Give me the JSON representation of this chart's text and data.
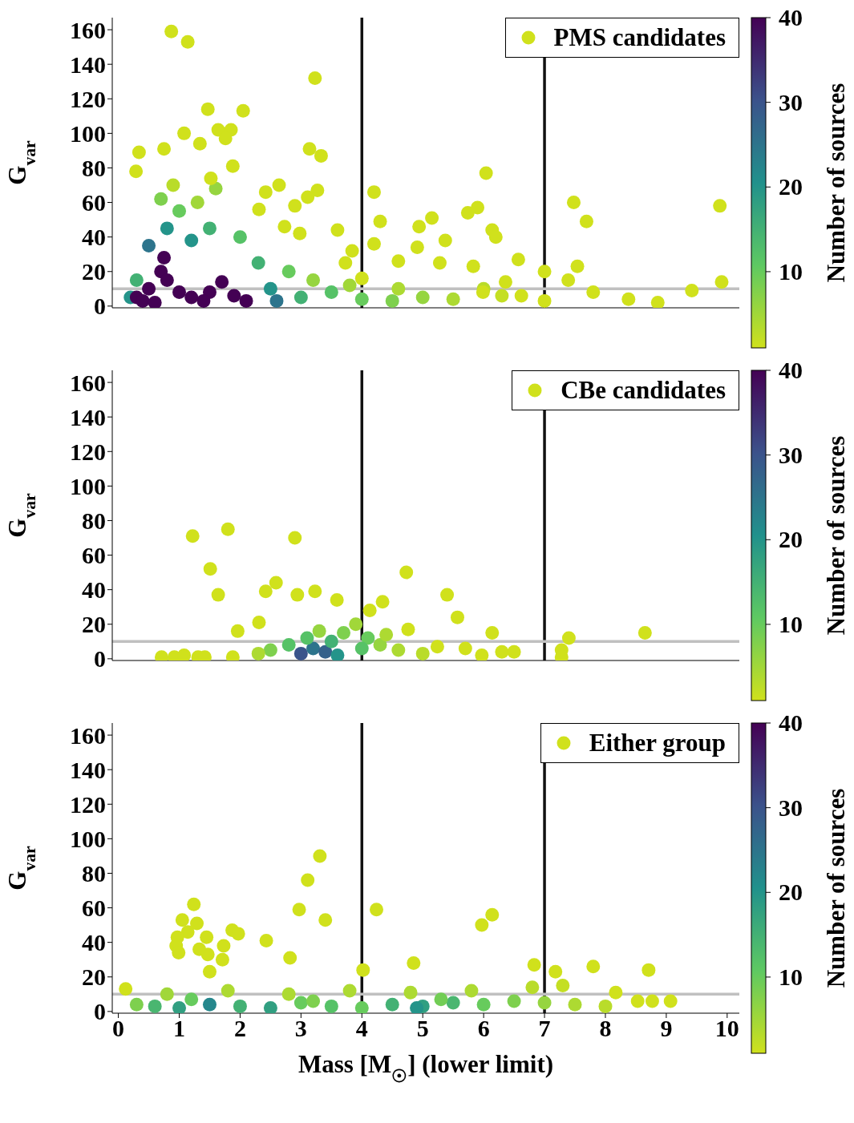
{
  "chart_data": [
    {
      "type": "scatter",
      "ylabel": "G$_{var}$",
      "clabel": "Number of sources",
      "clim": [
        1,
        40
      ],
      "cticks": [
        10,
        20,
        30,
        40
      ],
      "xlim": [
        -0.1,
        10.2
      ],
      "ylim": [
        -1,
        167
      ],
      "xticks": [
        0,
        1,
        2,
        3,
        4,
        5,
        6,
        7,
        8,
        9,
        10
      ],
      "yticks": [
        0,
        20,
        40,
        60,
        80,
        100,
        120,
        140,
        160
      ],
      "tick_labels": "y",
      "legend": "top right",
      "marker": "circle",
      "ref_lines": [
        {
          "axis": "x",
          "value": 4,
          "color": "#111111"
        },
        {
          "axis": "x",
          "value": 7,
          "color": "#111111"
        },
        {
          "axis": "y",
          "value": 10,
          "color": "#c0c0c0"
        }
      ],
      "series": [
        {
          "name": "PMS candidates",
          "x": [
            0.5,
            0.8,
            1.2,
            1.5,
            1.0,
            0.7,
            1.6,
            2.0,
            2.3,
            2.5,
            2.8,
            3.0,
            3.5,
            4.0,
            4.5,
            5.0,
            0.3,
            0.2,
            2.6,
            3.2,
            1.3,
            0.9,
            5.5,
            6.0,
            6.3,
            3.8,
            4.6,
            0.3,
            0.5,
            0.7,
            0.75,
            0.8,
            1.0,
            1.2,
            1.5,
            1.7,
            1.9,
            2.1,
            0.4,
            0.6,
            1.4,
            0.87,
            1.14,
            3.23,
            1.47,
            2.05,
            1.64,
            1.85,
            1.76,
            1.08,
            1.34,
            3.14,
            3.33,
            0.75,
            0.34,
            0.29,
            1.88,
            1.52,
            4.2,
            6.04,
            7.48,
            9.88,
            7.69,
            5.15,
            4.94,
            4.3,
            5.37,
            5.74,
            5.9,
            6.14,
            6.2,
            2.64,
            2.42,
            3.27,
            3.11,
            2.9,
            2.31,
            2.73,
            2.98,
            3.6,
            3.84,
            4.2,
            4.91,
            5.83,
            6.57,
            7.54,
            7.39,
            7.0,
            9.91,
            9.42,
            8.86,
            8.38,
            7.8,
            6.36,
            5.28,
            4.6,
            3.73,
            4.0,
            5.99,
            6.62,
            7.0
          ],
          "values": [
            35,
            45,
            38,
            45,
            55,
            62,
            68,
            40,
            25,
            10,
            20,
            5,
            8,
            4,
            3,
            5,
            15,
            5,
            3,
            15,
            60,
            70,
            4,
            10,
            6,
            12,
            10,
            5,
            10,
            20,
            28,
            15,
            8,
            5,
            8,
            14,
            6,
            3,
            3,
            2,
            3,
            159,
            153,
            132,
            114,
            113,
            102,
            102,
            97,
            100,
            94,
            91,
            87,
            91,
            89,
            78,
            81,
            74,
            66,
            77,
            60,
            58,
            49,
            51,
            46,
            49,
            38,
            54,
            57,
            44,
            40,
            70,
            66,
            67,
            63,
            58,
            56,
            46,
            42,
            44,
            32,
            36,
            34,
            23,
            27,
            23,
            15,
            20,
            14,
            9,
            2,
            4,
            8,
            14,
            25,
            26,
            25,
            16,
            8,
            6,
            3
          ],
          "cvalues": [
            25,
            20,
            20,
            15,
            10,
            8,
            6,
            12,
            15,
            20,
            10,
            15,
            12,
            10,
            8,
            6,
            15,
            20,
            25,
            6,
            5,
            3,
            4,
            3,
            2,
            5,
            4,
            40,
            40,
            40,
            40,
            40,
            40,
            40,
            40,
            40,
            40,
            40,
            40,
            40,
            40,
            1,
            1,
            1,
            1,
            1,
            1,
            1,
            1,
            1,
            1,
            1,
            1,
            1,
            1,
            1,
            1,
            1,
            1,
            1,
            1,
            1,
            1,
            1,
            1,
            1,
            1,
            1,
            1,
            1,
            1,
            1,
            1,
            1,
            1,
            1,
            1,
            1,
            1,
            1,
            1,
            1,
            1,
            1,
            1,
            1,
            1,
            1,
            1,
            1,
            1,
            1,
            1,
            1,
            1,
            1,
            1,
            1,
            1,
            1,
            1
          ]
        }
      ]
    },
    {
      "type": "scatter",
      "ylabel": "G$_{var}$",
      "clabel": "Number of sources",
      "clim": [
        1,
        40
      ],
      "cticks": [
        10,
        20,
        30,
        40
      ],
      "xlim": [
        -0.1,
        10.2
      ],
      "ylim": [
        -1,
        167
      ],
      "xticks": [
        0,
        1,
        2,
        3,
        4,
        5,
        6,
        7,
        8,
        9,
        10
      ],
      "yticks": [
        0,
        20,
        40,
        60,
        80,
        100,
        120,
        140,
        160
      ],
      "tick_labels": "y",
      "legend": "top right",
      "marker": "circle",
      "ref_lines": [
        {
          "axis": "x",
          "value": 4,
          "color": "#111111"
        },
        {
          "axis": "x",
          "value": 7,
          "color": "#111111"
        },
        {
          "axis": "y",
          "value": 10,
          "color": "#c0c0c0"
        }
      ],
      "series": [
        {
          "name": "CBe candidates",
          "x": [
            2.5,
            2.8,
            3.0,
            3.2,
            3.4,
            3.5,
            3.7,
            3.9,
            4.1,
            4.3,
            4.6,
            2.3,
            3.1,
            3.6,
            4.0,
            3.3,
            4.4,
            5.0,
            1.22,
            1.8,
            2.9,
            1.51,
            1.64,
            2.42,
            2.59,
            3.23,
            2.94,
            1.96,
            2.31,
            3.59,
            4.73,
            5.4,
            5.57,
            6.14,
            7.4,
            8.65,
            7.28,
            4.34,
            4.13,
            4.76,
            0.71,
            0.92,
            1.08,
            1.31,
            1.42,
            1.88,
            5.24,
            5.7,
            6.3,
            5.97,
            6.5,
            7.28
          ],
          "values": [
            5,
            8,
            3,
            6,
            4,
            10,
            15,
            20,
            12,
            8,
            5,
            3,
            12,
            2,
            6,
            16,
            14,
            3,
            71,
            75,
            70,
            52,
            37,
            39,
            44,
            39,
            37,
            16,
            21,
            34,
            50,
            37,
            24,
            15,
            12,
            15,
            5,
            33,
            28,
            17,
            1,
            1,
            2,
            1,
            1,
            1,
            7,
            6,
            4,
            2,
            4,
            1
          ],
          "cvalues": [
            8,
            12,
            30,
            25,
            28,
            15,
            8,
            5,
            10,
            6,
            4,
            4,
            12,
            20,
            12,
            6,
            4,
            3,
            1,
            1,
            1,
            1,
            1,
            1,
            1,
            1,
            1,
            1,
            1,
            1,
            1,
            1,
            1,
            1,
            1,
            1,
            1,
            1,
            1,
            1,
            1,
            1,
            1,
            1,
            1,
            1,
            1,
            1,
            1,
            1,
            1,
            1
          ]
        }
      ]
    },
    {
      "type": "scatter",
      "ylabel": "G$_{var}$",
      "xlabel": "Mass [M$_{☉}$] (lower limit)",
      "clabel": "Number of sources",
      "clim": [
        1,
        40
      ],
      "cticks": [
        10,
        20,
        30,
        40
      ],
      "xlim": [
        -0.1,
        10.2
      ],
      "ylim": [
        -1,
        167
      ],
      "xticks": [
        0,
        1,
        2,
        3,
        4,
        5,
        6,
        7,
        8,
        9,
        10
      ],
      "yticks": [
        0,
        20,
        40,
        60,
        80,
        100,
        120,
        140,
        160
      ],
      "legend": "top right",
      "marker": "circle",
      "ref_lines": [
        {
          "axis": "x",
          "value": 4,
          "color": "#111111"
        },
        {
          "axis": "x",
          "value": 7,
          "color": "#111111"
        },
        {
          "axis": "y",
          "value": 10,
          "color": "#c0c0c0"
        }
      ],
      "series": [
        {
          "name": "Either group",
          "x": [
            0.3,
            0.6,
            1.0,
            1.5,
            2.0,
            2.5,
            3.0,
            3.5,
            4.0,
            4.5,
            5.0,
            5.5,
            6.0,
            6.5,
            7.0,
            7.5,
            8.0,
            0.8,
            1.8,
            2.8,
            3.8,
            4.8,
            5.8,
            6.8,
            7.3,
            1.2,
            3.2,
            5.3,
            4.9,
            3.31,
            3.11,
            2.97,
            3.4,
            4.24,
            1.24,
            1.05,
            1.29,
            1.14,
            0.97,
            0.95,
            0.99,
            1.33,
            1.45,
            1.73,
            1.87,
            1.97,
            1.47,
            1.71,
            2.43,
            2.82,
            1.5,
            5.97,
            6.14,
            4.85,
            4.02,
            6.83,
            7.18,
            7.8,
            8.71,
            8.17,
            8.53,
            8.77,
            9.07,
            0.12
          ],
          "values": [
            4,
            3,
            2,
            4,
            3,
            2,
            5,
            3,
            2,
            4,
            3,
            5,
            4,
            6,
            5,
            4,
            3,
            10,
            12,
            10,
            12,
            11,
            12,
            14,
            15,
            7,
            6,
            7,
            2,
            90,
            76,
            59,
            53,
            59,
            62,
            53,
            51,
            46,
            43,
            38,
            34,
            36,
            43,
            38,
            47,
            45,
            33,
            30,
            41,
            31,
            23,
            50,
            56,
            28,
            24,
            27,
            23,
            26,
            24,
            11,
            6,
            6,
            6,
            13
          ],
          "cvalues": [
            8,
            14,
            18,
            22,
            15,
            18,
            10,
            12,
            10,
            15,
            18,
            14,
            10,
            8,
            6,
            4,
            3,
            5,
            4,
            4,
            4,
            4,
            4,
            3,
            2,
            10,
            8,
            9,
            20,
            1,
            1,
            1,
            1,
            1,
            1,
            1,
            1,
            1,
            1,
            1,
            1,
            1,
            1,
            1,
            1,
            1,
            1,
            1,
            1,
            1,
            1,
            1,
            1,
            1,
            1,
            1,
            1,
            1,
            1,
            1,
            1,
            1,
            1,
            1
          ]
        }
      ]
    }
  ]
}
